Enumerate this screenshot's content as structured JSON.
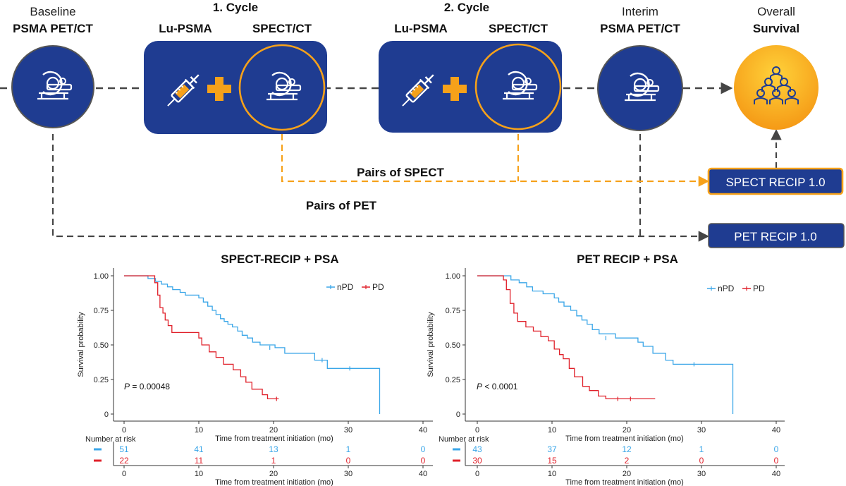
{
  "colors": {
    "navy": "#1f3c91",
    "orange": "#f6a11a",
    "blue_series": "#3aa6e8",
    "red_series": "#e0202a",
    "gold_start": "#ffd23a",
    "gold_end": "#f59a16",
    "dashed_gray": "#454545"
  },
  "icons": {
    "scanner": "pet-ct-scanner-icon",
    "syringe": "syringe-icon",
    "plus": "plus-icon",
    "survival": "population-group-icon"
  },
  "workflow": {
    "baseline": {
      "line1": "Baseline",
      "line2": "PSMA PET/CT"
    },
    "cycle1": {
      "title": "1. Cycle",
      "left_label": "Lu-PSMA",
      "right_label": "SPECT/CT"
    },
    "cycle2": {
      "title": "2. Cycle",
      "left_label": "Lu-PSMA",
      "right_label": "SPECT/CT"
    },
    "interim": {
      "line1": "Interim",
      "line2": "PSMA PET/CT"
    },
    "overall": {
      "line1": "Overall",
      "line2": "Survival"
    },
    "pairs_spect": "Pairs of SPECT",
    "pairs_pet": "Pairs of PET",
    "spect_recip_box": "SPECT RECIP 1.0",
    "pet_recip_box": "PET RECIP 1.0"
  },
  "chart_data": [
    {
      "type": "line",
      "title": "SPECT-RECIP + PSA",
      "xlabel": "Time from treatment initiation (mo)",
      "ylabel": "Survival probability",
      "xlim": [
        0,
        40
      ],
      "ylim": [
        0,
        1
      ],
      "xticks": [
        "0",
        "10",
        "20",
        "30",
        "40"
      ],
      "yticks": [
        "0",
        "0.25",
        "0.50",
        "0.75",
        "1.00"
      ],
      "legend": {
        "placement": "top-right",
        "entries": [
          "nPD",
          "PD"
        ]
      },
      "annotation": {
        "prefix": "P",
        "text": " = 0.00048"
      },
      "series": [
        {
          "name": "nPD",
          "color": "#3aa6e8",
          "points": [
            [
              0,
              1
            ],
            [
              3.2,
              1
            ],
            [
              3.2,
              0.98
            ],
            [
              4.2,
              0.98
            ],
            [
              4.2,
              0.96
            ],
            [
              5,
              0.96
            ],
            [
              5,
              0.94
            ],
            [
              5.8,
              0.94
            ],
            [
              5.8,
              0.92
            ],
            [
              6.5,
              0.92
            ],
            [
              6.5,
              0.9
            ],
            [
              7.5,
              0.9
            ],
            [
              7.5,
              0.88
            ],
            [
              8.2,
              0.88
            ],
            [
              8.2,
              0.86
            ],
            [
              10,
              0.86
            ],
            [
              10,
              0.84
            ],
            [
              10.6,
              0.84
            ],
            [
              10.6,
              0.81
            ],
            [
              11.2,
              0.81
            ],
            [
              11.2,
              0.78
            ],
            [
              11.8,
              0.78
            ],
            [
              11.8,
              0.75
            ],
            [
              12.3,
              0.75
            ],
            [
              12.3,
              0.72
            ],
            [
              12.9,
              0.72
            ],
            [
              12.9,
              0.69
            ],
            [
              13.4,
              0.69
            ],
            [
              13.4,
              0.67
            ],
            [
              13.9,
              0.67
            ],
            [
              13.9,
              0.65
            ],
            [
              14.5,
              0.65
            ],
            [
              14.5,
              0.63
            ],
            [
              15.2,
              0.63
            ],
            [
              15.2,
              0.6
            ],
            [
              15.8,
              0.6
            ],
            [
              15.8,
              0.57
            ],
            [
              16.5,
              0.57
            ],
            [
              16.5,
              0.55
            ],
            [
              17.2,
              0.55
            ],
            [
              17.2,
              0.52
            ],
            [
              18.2,
              0.52
            ],
            [
              18.2,
              0.5
            ],
            [
              20.2,
              0.5
            ],
            [
              20.2,
              0.48
            ],
            [
              21.5,
              0.48
            ],
            [
              21.5,
              0.44
            ],
            [
              25.5,
              0.44
            ],
            [
              25.5,
              0.39
            ],
            [
              27.2,
              0.39
            ],
            [
              27.2,
              0.33
            ],
            [
              34.2,
              0.33
            ],
            [
              34.2,
              0
            ]
          ],
          "censor": [
            [
              19.5,
              0.48
            ],
            [
              26.5,
              0.39
            ],
            [
              30.2,
              0.33
            ]
          ]
        },
        {
          "name": "PD",
          "color": "#e0202a",
          "points": [
            [
              0,
              1
            ],
            [
              4.1,
              1
            ],
            [
              4.1,
              0.95
            ],
            [
              4.5,
              0.95
            ],
            [
              4.5,
              0.86
            ],
            [
              4.8,
              0.86
            ],
            [
              4.8,
              0.77
            ],
            [
              5.2,
              0.77
            ],
            [
              5.2,
              0.73
            ],
            [
              5.5,
              0.73
            ],
            [
              5.5,
              0.68
            ],
            [
              5.9,
              0.68
            ],
            [
              5.9,
              0.64
            ],
            [
              6.4,
              0.64
            ],
            [
              6.4,
              0.59
            ],
            [
              10,
              0.59
            ],
            [
              10,
              0.55
            ],
            [
              10.4,
              0.55
            ],
            [
              10.4,
              0.5
            ],
            [
              11.4,
              0.5
            ],
            [
              11.4,
              0.45
            ],
            [
              12.3,
              0.45
            ],
            [
              12.3,
              0.41
            ],
            [
              13.3,
              0.41
            ],
            [
              13.3,
              0.36
            ],
            [
              14.6,
              0.36
            ],
            [
              14.6,
              0.32
            ],
            [
              15.6,
              0.32
            ],
            [
              15.6,
              0.27
            ],
            [
              16.3,
              0.27
            ],
            [
              16.3,
              0.23
            ],
            [
              17.1,
              0.23
            ],
            [
              17.1,
              0.18
            ],
            [
              18.5,
              0.18
            ],
            [
              18.5,
              0.14
            ],
            [
              19.2,
              0.14
            ],
            [
              19.2,
              0.11
            ],
            [
              20.7,
              0.11
            ]
          ],
          "censor": [
            [
              20.4,
              0.11
            ]
          ]
        }
      ],
      "risk_table": {
        "header": "Number at risk",
        "x_values": [
          0,
          10,
          20,
          30,
          40
        ],
        "rows": [
          {
            "name": "nPD",
            "color": "#3aa6e8",
            "values": [
              "51",
              "41",
              "13",
              "1",
              "0"
            ]
          },
          {
            "name": "PD",
            "color": "#e0202a",
            "values": [
              "22",
              "11",
              "1",
              "0",
              "0"
            ]
          }
        ]
      }
    },
    {
      "type": "line",
      "title": "PET RECIP + PSA",
      "xlabel": "Time from treatment initiation (mo)",
      "ylabel": "Survival probability",
      "xlim": [
        0,
        40
      ],
      "ylim": [
        0,
        1
      ],
      "xticks": [
        "0",
        "10",
        "20",
        "30",
        "40"
      ],
      "yticks": [
        "0",
        "0.25",
        "0.50",
        "0.75",
        "1.00"
      ],
      "legend": {
        "placement": "top-right",
        "entries": [
          "nPD",
          "PD"
        ]
      },
      "annotation": {
        "prefix": "P",
        "text": " < 0.0001"
      },
      "series": [
        {
          "name": "nPD",
          "color": "#3aa6e8",
          "points": [
            [
              0,
              1
            ],
            [
              4.5,
              1
            ],
            [
              4.5,
              0.97
            ],
            [
              5.6,
              0.97
            ],
            [
              5.6,
              0.95
            ],
            [
              6.6,
              0.95
            ],
            [
              6.6,
              0.92
            ],
            [
              7.4,
              0.92
            ],
            [
              7.4,
              0.89
            ],
            [
              8.8,
              0.89
            ],
            [
              8.8,
              0.87
            ],
            [
              10.3,
              0.87
            ],
            [
              10.3,
              0.84
            ],
            [
              10.9,
              0.84
            ],
            [
              10.9,
              0.81
            ],
            [
              11.6,
              0.81
            ],
            [
              11.6,
              0.78
            ],
            [
              12.5,
              0.78
            ],
            [
              12.5,
              0.75
            ],
            [
              13.3,
              0.75
            ],
            [
              13.3,
              0.71
            ],
            [
              14,
              0.71
            ],
            [
              14,
              0.68
            ],
            [
              14.7,
              0.68
            ],
            [
              14.7,
              0.65
            ],
            [
              15.4,
              0.65
            ],
            [
              15.4,
              0.61
            ],
            [
              16.3,
              0.61
            ],
            [
              16.3,
              0.58
            ],
            [
              18.5,
              0.58
            ],
            [
              18.5,
              0.55
            ],
            [
              21.5,
              0.55
            ],
            [
              21.5,
              0.52
            ],
            [
              22.2,
              0.52
            ],
            [
              22.2,
              0.49
            ],
            [
              23.5,
              0.49
            ],
            [
              23.5,
              0.44
            ],
            [
              25.2,
              0.44
            ],
            [
              25.2,
              0.39
            ],
            [
              26.2,
              0.39
            ],
            [
              26.2,
              0.36
            ],
            [
              34.2,
              0.36
            ],
            [
              34.2,
              0
            ]
          ],
          "censor": [
            [
              17.2,
              0.55
            ],
            [
              29,
              0.36
            ]
          ]
        },
        {
          "name": "PD",
          "color": "#e0202a",
          "points": [
            [
              0,
              1
            ],
            [
              3.5,
              1
            ],
            [
              3.5,
              0.97
            ],
            [
              3.9,
              0.97
            ],
            [
              3.9,
              0.9
            ],
            [
              4.4,
              0.9
            ],
            [
              4.4,
              0.8
            ],
            [
              4.9,
              0.8
            ],
            [
              4.9,
              0.73
            ],
            [
              5.4,
              0.73
            ],
            [
              5.4,
              0.67
            ],
            [
              6.5,
              0.67
            ],
            [
              6.5,
              0.63
            ],
            [
              7.5,
              0.63
            ],
            [
              7.5,
              0.6
            ],
            [
              8.5,
              0.6
            ],
            [
              8.5,
              0.56
            ],
            [
              9.5,
              0.56
            ],
            [
              9.5,
              0.53
            ],
            [
              10.3,
              0.53
            ],
            [
              10.3,
              0.47
            ],
            [
              11,
              0.47
            ],
            [
              11,
              0.43
            ],
            [
              11.5,
              0.43
            ],
            [
              11.5,
              0.4
            ],
            [
              12.3,
              0.4
            ],
            [
              12.3,
              0.33
            ],
            [
              13,
              0.33
            ],
            [
              13,
              0.27
            ],
            [
              14.1,
              0.27
            ],
            [
              14.1,
              0.2
            ],
            [
              15,
              0.2
            ],
            [
              15,
              0.17
            ],
            [
              16.2,
              0.17
            ],
            [
              16.2,
              0.13
            ],
            [
              17.2,
              0.13
            ],
            [
              17.2,
              0.11
            ],
            [
              23.8,
              0.11
            ]
          ],
          "censor": [
            [
              18.8,
              0.11
            ],
            [
              20.5,
              0.11
            ]
          ]
        }
      ],
      "risk_table": {
        "header": "Number at risk",
        "x_values": [
          0,
          10,
          20,
          30,
          40
        ],
        "rows": [
          {
            "name": "nPD",
            "color": "#3aa6e8",
            "values": [
              "43",
              "37",
              "12",
              "1",
              "0"
            ]
          },
          {
            "name": "PD",
            "color": "#e0202a",
            "values": [
              "30",
              "15",
              "2",
              "0",
              "0"
            ]
          }
        ]
      }
    }
  ]
}
